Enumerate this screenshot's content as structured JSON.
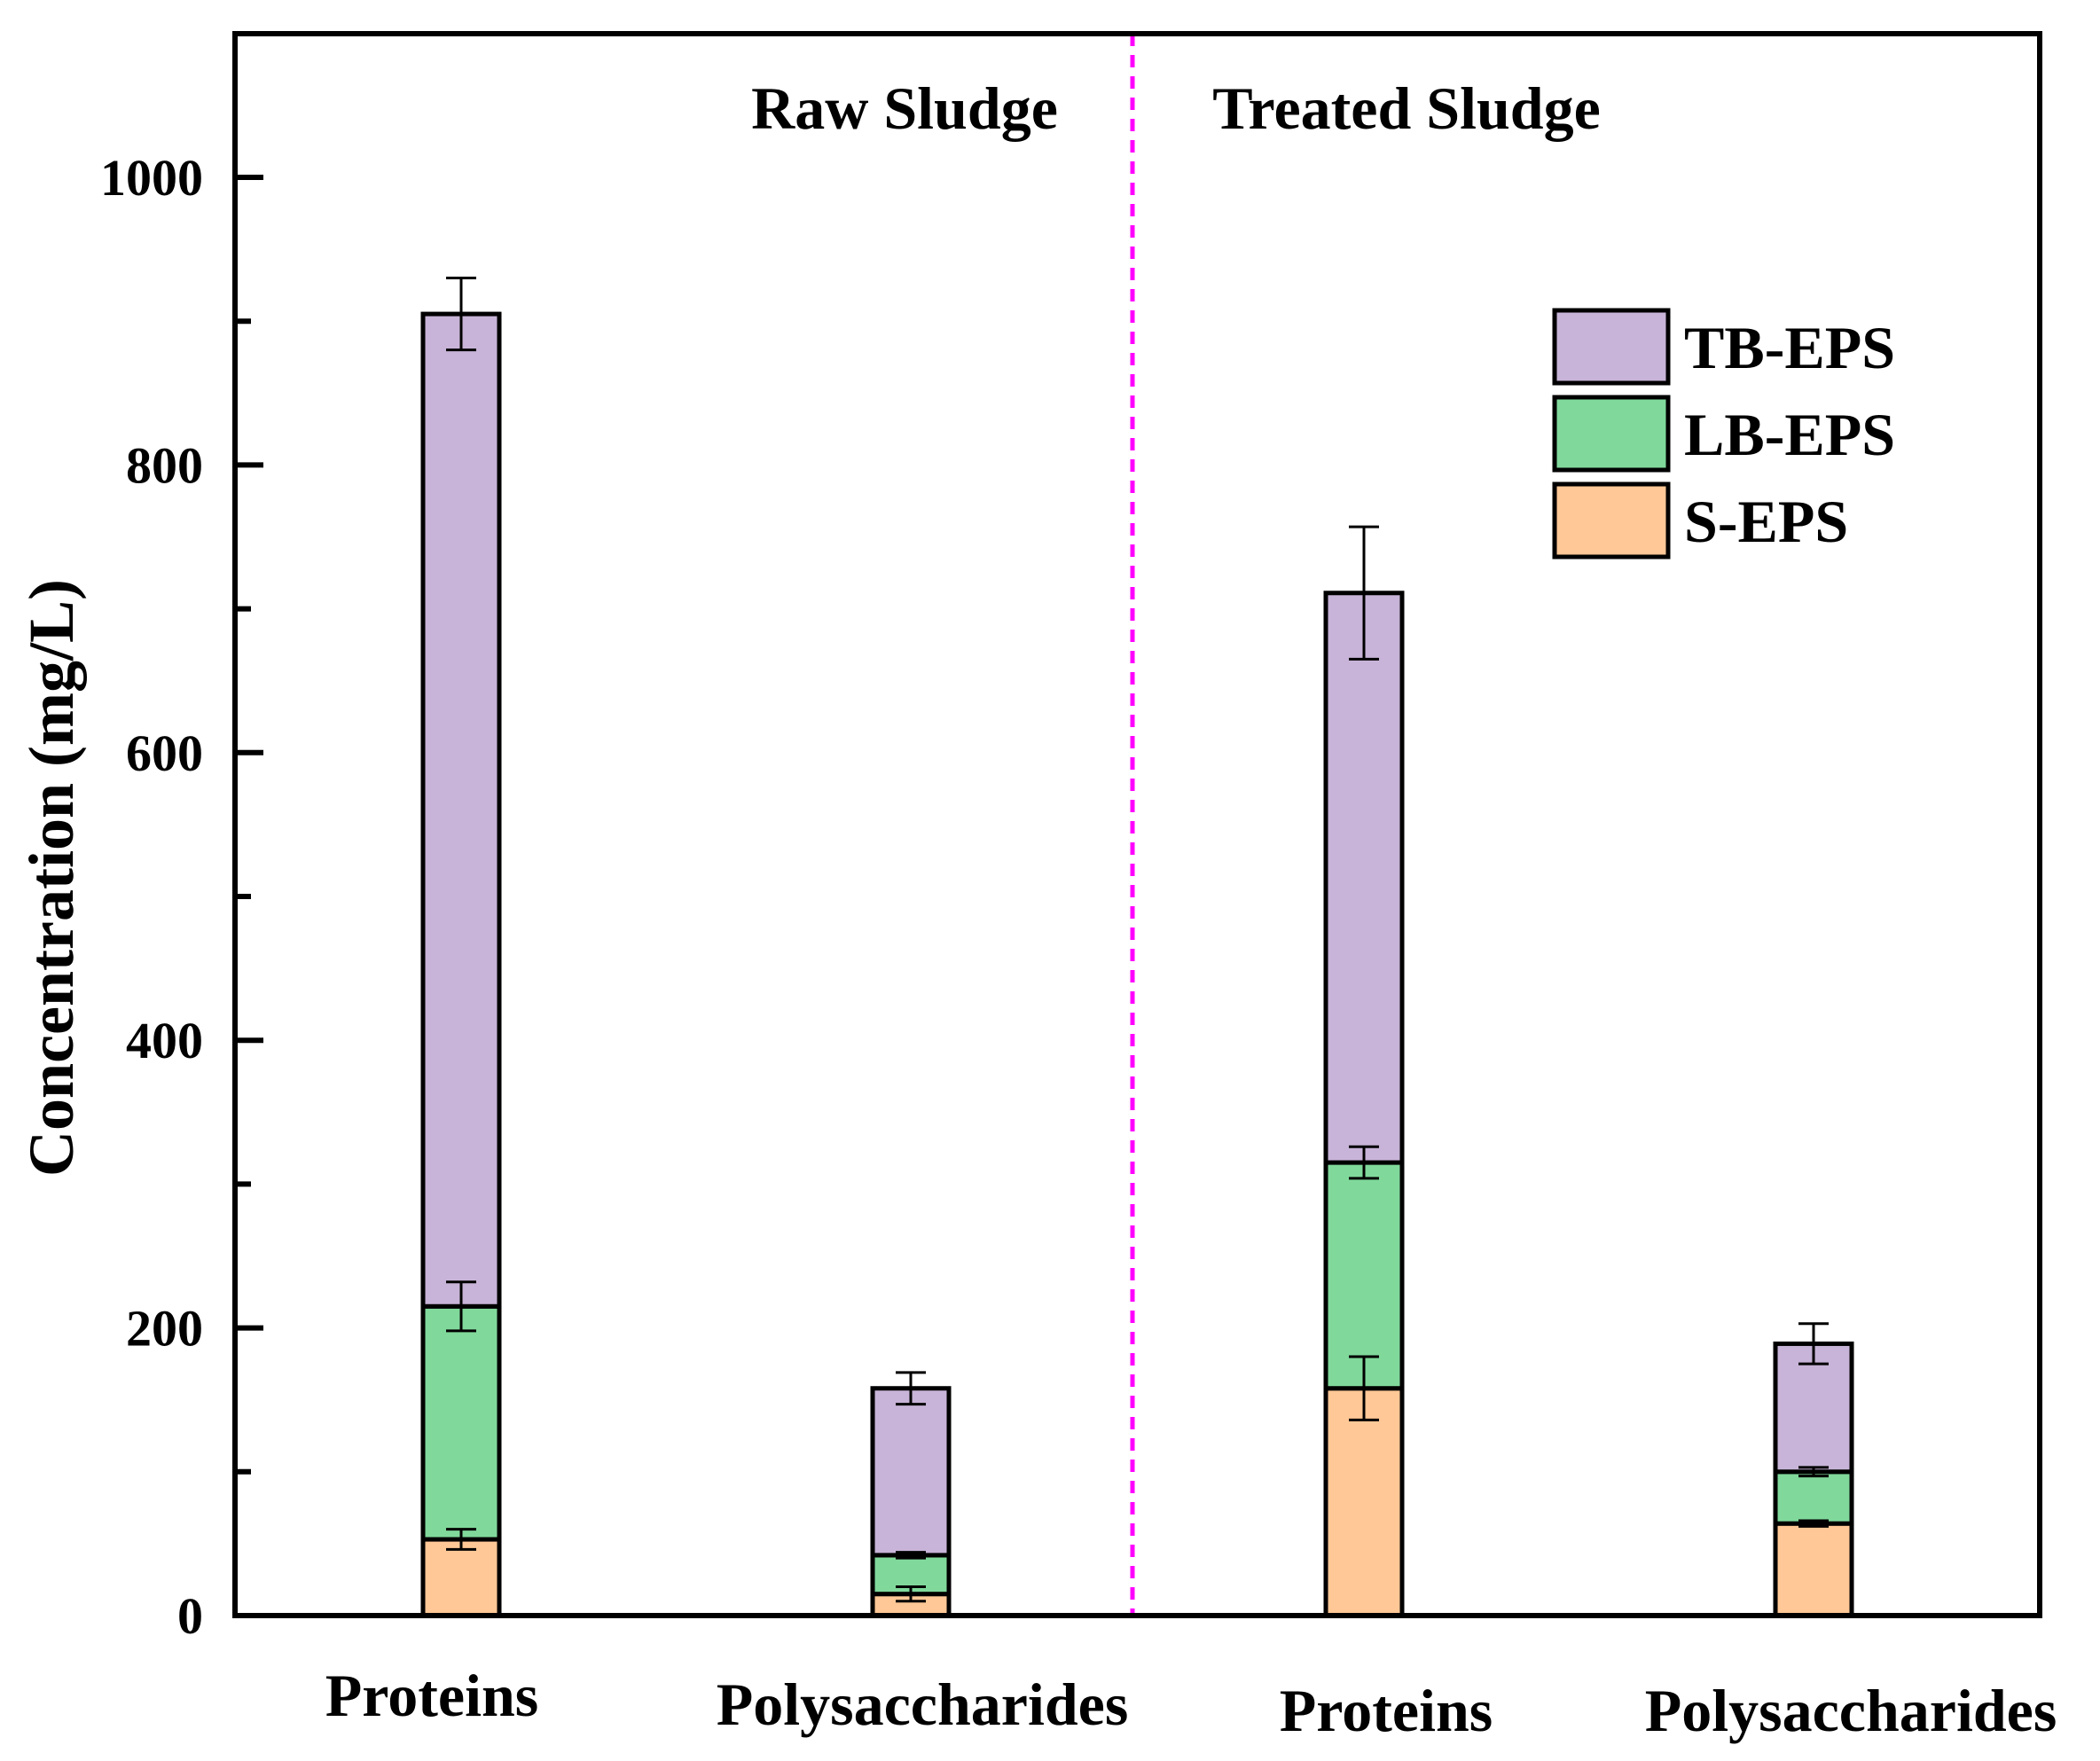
{
  "chart_data": {
    "type": "bar",
    "stacked": true,
    "title": "",
    "xlabel": "",
    "ylabel": "Concentration (mg/L)",
    "ylim": [
      0,
      1100
    ],
    "yticks": [
      0,
      200,
      400,
      600,
      800,
      1000
    ],
    "yminor_ticks": [
      100,
      300,
      500,
      700,
      900
    ],
    "categories": [
      "Proteins",
      "Polysaccharides",
      "Proteins",
      "Polysaccharides"
    ],
    "groups": [
      {
        "label": "Raw Sludge",
        "categories": [
          0,
          1
        ]
      },
      {
        "label": "Treated Sludge",
        "categories": [
          2,
          3
        ]
      }
    ],
    "divider_color": "#ff00ff",
    "legend_position": "top-right",
    "series": [
      {
        "name": "S-EPS",
        "color": "#ffc896",
        "values": [
          53,
          15,
          158,
          64
        ],
        "errors": [
          7,
          5,
          22,
          2
        ]
      },
      {
        "name": "LB-EPS",
        "color": "#80d99b",
        "values": [
          162,
          27,
          157,
          36
        ],
        "errors": [
          17,
          2,
          11,
          3
        ]
      },
      {
        "name": "TB-EPS",
        "color": "#c8b4d8",
        "values": [
          690,
          116,
          396,
          89
        ],
        "errors": [
          25,
          11,
          46,
          14
        ]
      }
    ]
  }
}
